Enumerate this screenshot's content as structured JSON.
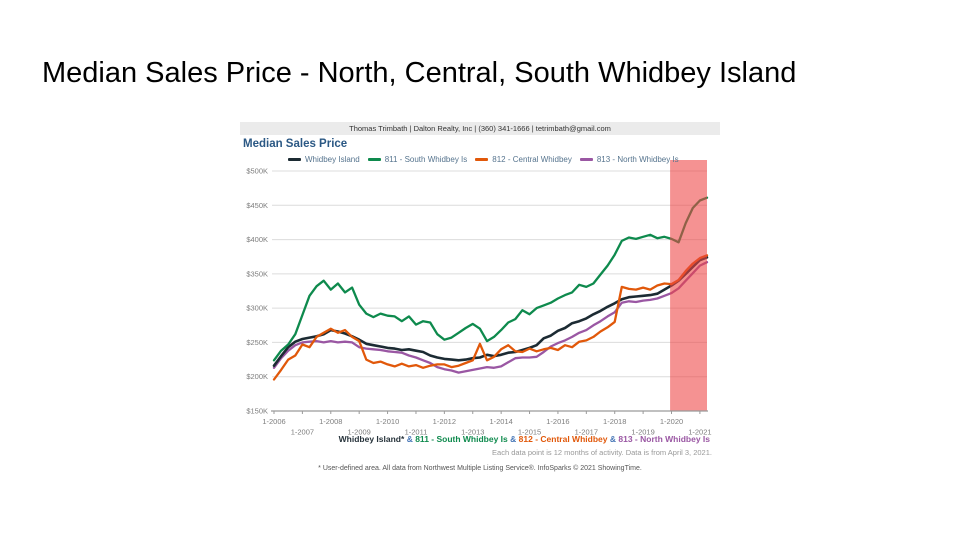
{
  "slide": {
    "title": "Median Sales Price - North, Central, South Whidbey Island"
  },
  "widget": {
    "header": "Thomas Trimbath | Dalton Realty, Inc | (360) 341-1666 | tetrimbath@gmail.com",
    "chart_title": "Median Sales Price",
    "data_note": "Each data point is 12 months of activity. Data is from April 3, 2021.",
    "footnote": "* User-defined area. All data from Northwest Multiple Listing Service®. InfoSparks © 2021 ShowingTime."
  },
  "caption": {
    "part1": "Whidbey Island*",
    "amp1": "&",
    "part2": "811 - South Whidbey Is",
    "amp2": "&",
    "part3": "812 - Central Whidbey",
    "amp3": "&",
    "part4": "813 - North Whidbey Is"
  },
  "colors": {
    "green": "#0e8a4d",
    "orange": "#e1580a",
    "purple": "#9a57a3",
    "line_dark": "#1c2b33",
    "amp_blue": "#4a79b8",
    "caption_dark": "#26323a",
    "title_blue": "#2b5884",
    "legend_text": "#56748e",
    "highlight_red": "#ee4444",
    "grid": "#dcdcdc",
    "axis": "#9a9a9a"
  },
  "chart_data": {
    "type": "line",
    "title": "Median Sales Price",
    "xlabel": "",
    "ylabel": "",
    "units": "USD thousands",
    "xlim": [
      2006,
      2021.25
    ],
    "ylim": [
      150,
      500
    ],
    "grid": true,
    "legend_position": "top",
    "y_ticks": [
      "$500K",
      "$450K",
      "$400K",
      "$350K",
      "$300K",
      "$250K",
      "$200K",
      "$150K"
    ],
    "y_tick_values": [
      500,
      450,
      400,
      350,
      300,
      250,
      200,
      150
    ],
    "x_ticks_row1": [
      "1-2006",
      "1-2008",
      "1-2010",
      "1-2012",
      "1-2014",
      "1-2016",
      "1-2018",
      "1-2020"
    ],
    "x_ticks_row1_values": [
      2006,
      2008,
      2010,
      2012,
      2014,
      2016,
      2018,
      2020
    ],
    "x_ticks_row2": [
      "1-2007",
      "1-2009",
      "1-2011",
      "1-2013",
      "1-2015",
      "1-2017",
      "1-2019",
      "1-2021"
    ],
    "x_ticks_row2_values": [
      2007,
      2009,
      2011,
      2013,
      2015,
      2017,
      2019,
      2021
    ],
    "highlight": {
      "x_start": 2019.95,
      "x_end": 2021.25,
      "color": "#ee4444",
      "opacity": 0.58
    },
    "x": [
      2006.0,
      2006.25,
      2006.5,
      2006.75,
      2007.0,
      2007.25,
      2007.5,
      2007.75,
      2008.0,
      2008.25,
      2008.5,
      2008.75,
      2009.0,
      2009.25,
      2009.5,
      2009.75,
      2010.0,
      2010.25,
      2010.5,
      2010.75,
      2011.0,
      2011.25,
      2011.5,
      2011.75,
      2012.0,
      2012.25,
      2012.5,
      2012.75,
      2013.0,
      2013.25,
      2013.5,
      2013.75,
      2014.0,
      2014.25,
      2014.5,
      2014.75,
      2015.0,
      2015.25,
      2015.5,
      2015.75,
      2016.0,
      2016.25,
      2016.5,
      2016.75,
      2017.0,
      2017.25,
      2017.5,
      2017.75,
      2018.0,
      2018.25,
      2018.5,
      2018.75,
      2019.0,
      2019.25,
      2019.5,
      2019.75,
      2020.0,
      2020.25,
      2020.5,
      2020.75,
      2021.0,
      2021.25
    ],
    "series": [
      {
        "name": "Whidbey Island",
        "color": "#1c2b33",
        "values": [
          216,
          230,
          243,
          251,
          255,
          257,
          259,
          262,
          268,
          266,
          263,
          259,
          254,
          248,
          246,
          244,
          242,
          241,
          239,
          240,
          238,
          236,
          231,
          228,
          226,
          225,
          224,
          225,
          227,
          228,
          232,
          230,
          232,
          235,
          236,
          239,
          242,
          246,
          256,
          260,
          267,
          271,
          278,
          281,
          285,
          291,
          296,
          302,
          307,
          313,
          316,
          317,
          318,
          319,
          321,
          327,
          333,
          340,
          350,
          360,
          370,
          374
        ]
      },
      {
        "name": "811 - South Whidbey Is",
        "color": "#0e8a4d",
        "values": [
          224,
          238,
          247,
          262,
          290,
          318,
          332,
          340,
          327,
          336,
          323,
          330,
          305,
          292,
          287,
          292,
          289,
          288,
          281,
          288,
          276,
          281,
          279,
          262,
          254,
          257,
          264,
          271,
          277,
          270,
          252,
          258,
          268,
          279,
          284,
          297,
          291,
          300,
          304,
          308,
          314,
          319,
          323,
          334,
          331,
          336,
          349,
          362,
          378,
          398,
          403,
          401,
          404,
          407,
          402,
          404,
          401,
          396,
          424,
          446,
          457,
          461
        ]
      },
      {
        "name": "812 - Central Whidbey",
        "color": "#e1580a",
        "values": [
          196,
          210,
          225,
          231,
          247,
          243,
          258,
          264,
          270,
          264,
          268,
          258,
          252,
          225,
          220,
          222,
          218,
          215,
          219,
          215,
          217,
          213,
          216,
          218,
          218,
          214,
          216,
          220,
          224,
          248,
          224,
          229,
          240,
          246,
          237,
          236,
          241,
          237,
          240,
          242,
          239,
          246,
          243,
          251,
          253,
          258,
          266,
          272,
          280,
          331,
          328,
          327,
          330,
          327,
          333,
          336,
          335,
          341,
          354,
          365,
          373,
          377
        ]
      },
      {
        "name": "813 - North Whidbey Is",
        "color": "#9a57a3",
        "values": [
          213,
          227,
          238,
          246,
          250,
          251,
          252,
          250,
          252,
          250,
          251,
          250,
          243,
          241,
          240,
          239,
          237,
          236,
          235,
          231,
          228,
          224,
          220,
          214,
          211,
          209,
          206,
          208,
          210,
          212,
          214,
          213,
          215,
          221,
          227,
          228,
          228,
          229,
          236,
          244,
          249,
          253,
          258,
          264,
          268,
          275,
          281,
          288,
          294,
          308,
          310,
          309,
          311,
          312,
          314,
          318,
          322,
          329,
          340,
          351,
          362,
          367
        ]
      }
    ]
  }
}
